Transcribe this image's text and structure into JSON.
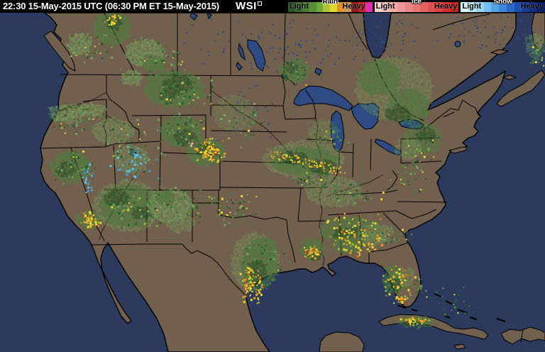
{
  "header": {
    "timestamp": "22:30 15-May-2015 UTC  (06:30 PM ET 15-May-2015)",
    "logo": "WSI",
    "bg_color": "#000000",
    "text_color": "#ffffff"
  },
  "legend": {
    "groups": [
      {
        "name": "Rain",
        "title_style": "dark",
        "light_label": "Light",
        "heavy_label": "Heavy",
        "colors": [
          "#2f5426",
          "#3a672c",
          "#477c31",
          "#578f36",
          "#6fa83c",
          "#b0c534",
          "#e0d82e",
          "#e39026",
          "#c9945f",
          "#8c1f1c",
          "#c42424",
          "#e02cb0"
        ]
      },
      {
        "name": "Ice",
        "title_style": "light",
        "light_label": "Light",
        "heavy_label": "Heavy",
        "colors": [
          "#f6cfcf",
          "#f3bcbc",
          "#f0aaaa",
          "#ed9898",
          "#ea8686",
          "#e77474",
          "#e46262",
          "#e15050",
          "#dc3e3e",
          "#d22c2c",
          "#c32020"
        ]
      },
      {
        "name": "Snow",
        "title_style": "light",
        "light_label": "Light",
        "heavy_label": "Heavy",
        "colors": [
          "#d8f4fb",
          "#b8e6f8",
          "#96d4f4",
          "#74bef0",
          "#54a4e8",
          "#3a86da",
          "#2a68c8",
          "#1f4eb2",
          "#163a9a",
          "#0f2a80",
          "#0a1c64"
        ]
      }
    ]
  },
  "map": {
    "palette": {
      "ocean": "#2c3a5e",
      "land": "#72604e",
      "lake": "#2e4a82",
      "border": "#000000",
      "radar_green_light": "#74a85c",
      "radar_green_mid": "#47823a",
      "radar_green_dark": "#265c26",
      "radar_yellow": "#ecd832",
      "radar_orange": "#f09c28",
      "radar_deep_orange": "#e56f1e",
      "radar_red": "#cf3a22",
      "ice_cyan": "#52c8f0",
      "snow_pink": "#efa8b0",
      "small_lake_dot": "#2e4a85"
    }
  }
}
